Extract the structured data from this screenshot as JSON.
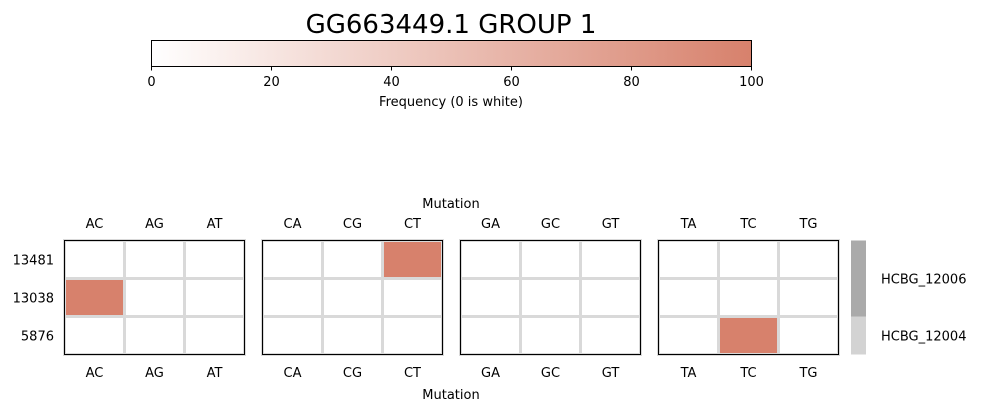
{
  "chart_data": {
    "type": "heatmap",
    "title": "GG663449.1 GROUP 1",
    "colorbar": {
      "label": "Frequency (0 is white)",
      "ticks": [
        "0",
        "20",
        "40",
        "60",
        "80",
        "100"
      ],
      "range": [
        0,
        100
      ],
      "color_low": "#ffffff",
      "color_high": "#d7816c"
    },
    "xlabel_top": "Mutation",
    "xlabel_bottom": "Mutation",
    "panels": [
      {
        "columns": [
          "AC",
          "AG",
          "AT"
        ]
      },
      {
        "columns": [
          "CA",
          "CG",
          "CT"
        ]
      },
      {
        "columns": [
          "GA",
          "GC",
          "GT"
        ]
      },
      {
        "columns": [
          "TA",
          "TC",
          "TG"
        ]
      }
    ],
    "rows": [
      "13481",
      "13038",
      "5876"
    ],
    "values": [
      [
        [
          0,
          0,
          0
        ],
        [
          0,
          0,
          100
        ],
        [
          0,
          0,
          0
        ],
        [
          0,
          0,
          0
        ]
      ],
      [
        [
          100,
          0,
          0
        ],
        [
          0,
          0,
          0
        ],
        [
          0,
          0,
          0
        ],
        [
          0,
          0,
          0
        ]
      ],
      [
        [
          0,
          0,
          0
        ],
        [
          0,
          0,
          0
        ],
        [
          0,
          0,
          0
        ],
        [
          0,
          100,
          0
        ]
      ]
    ],
    "groups": [
      {
        "label": "HCBG_12006",
        "rows": [
          "13481",
          "13038"
        ],
        "color": "#aaaaaa"
      },
      {
        "label": "HCBG_12004",
        "rows": [
          "5876"
        ],
        "color": "#d3d3d3"
      }
    ],
    "gridline_color": "#d9d9d9"
  }
}
